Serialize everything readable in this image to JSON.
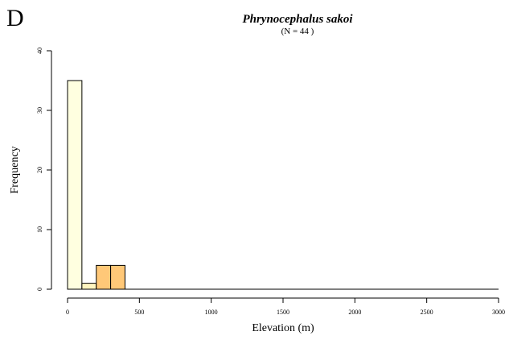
{
  "panel_label": "D",
  "chart_data": {
    "type": "bar",
    "title": "Phrynocephalus sakoi",
    "subtitle": "(N = 44 )",
    "xlabel": "Elevation (m)",
    "ylabel": "Frequency",
    "bin_width": 100,
    "xlim": [
      0,
      3000
    ],
    "ylim": [
      0,
      40
    ],
    "x_ticks": [
      0,
      500,
      1000,
      1500,
      2000,
      2500,
      3000
    ],
    "y_ticks": [
      0,
      10,
      20,
      30,
      40
    ],
    "bins": [
      {
        "start": 0,
        "end": 100,
        "count": 35,
        "color": "#FFFFE0"
      },
      {
        "start": 100,
        "end": 200,
        "count": 1,
        "color": "#FFF5C0"
      },
      {
        "start": 200,
        "end": 300,
        "count": 4,
        "color": "#FFC878"
      },
      {
        "start": 300,
        "end": 400,
        "count": 4,
        "color": "#FFC878"
      }
    ]
  }
}
